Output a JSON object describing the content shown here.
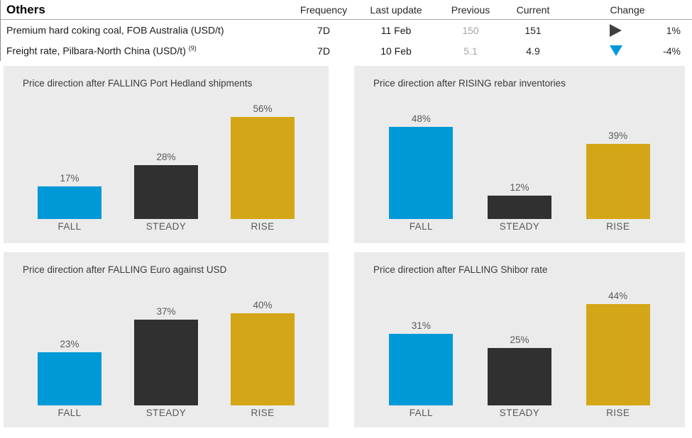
{
  "colors": {
    "bar_colors": [
      "#0099D8",
      "#303030",
      "#D4A617"
    ],
    "panel_background": "#EBEBEB",
    "label_gray": "#595959",
    "previous_value_gray": "#A6A6A6",
    "change_flat_arrow": "#3F3F3F",
    "change_down_arrow": "#0099D8"
  },
  "table": {
    "title": "Others",
    "columns": {
      "frequency": "Frequency",
      "last_update": "Last update",
      "previous": "Previous",
      "current": "Current",
      "change": "Change"
    },
    "rows": [
      {
        "name": "Premium hard coking coal, FOB Australia (USD/t)",
        "superscript": "",
        "frequency": "7D",
        "last_update": "11 Feb",
        "previous": "150",
        "current": "151",
        "change": "1%",
        "change_direction": "flat"
      },
      {
        "name": "Freight rate, Pilbara-North China (USD/t)",
        "superscript": "(9)",
        "frequency": "7D",
        "last_update": "10 Feb",
        "previous": "5.1",
        "current": "4.9",
        "change": "-4%",
        "change_direction": "down"
      }
    ]
  },
  "chart_data": [
    {
      "type": "bar",
      "title": "Price direction after FALLING Port Hedland shipments",
      "categories": [
        "FALL",
        "STEADY",
        "RISE"
      ],
      "values": [
        17,
        28,
        56
      ],
      "value_labels": [
        "17%",
        "28%",
        "56%"
      ],
      "xlabel": "",
      "ylabel": "",
      "ylim": [
        0,
        60
      ],
      "grid": false,
      "legend": "none"
    },
    {
      "type": "bar",
      "title": "Price direction after RISING rebar inventories",
      "categories": [
        "FALL",
        "STEADY",
        "RISE"
      ],
      "values": [
        48,
        12,
        39
      ],
      "value_labels": [
        "48%",
        "12%",
        "39%"
      ],
      "xlabel": "",
      "ylabel": "",
      "ylim": [
        0,
        60
      ],
      "grid": false,
      "legend": "none"
    },
    {
      "type": "bar",
      "title": "Price direction after FALLING Euro against USD",
      "categories": [
        "FALL",
        "STEADY",
        "RISE"
      ],
      "values": [
        23,
        37,
        40
      ],
      "value_labels": [
        "23%",
        "37%",
        "40%"
      ],
      "xlabel": "",
      "ylabel": "",
      "ylim": [
        0,
        50
      ],
      "grid": false,
      "legend": "none"
    },
    {
      "type": "bar",
      "title": "Price direction after FALLING Shibor rate",
      "categories": [
        "FALL",
        "STEADY",
        "RISE"
      ],
      "values": [
        31,
        25,
        44
      ],
      "value_labels": [
        "31%",
        "25%",
        "44%"
      ],
      "xlabel": "",
      "ylabel": "",
      "ylim": [
        0,
        50
      ],
      "grid": false,
      "legend": "none"
    }
  ]
}
